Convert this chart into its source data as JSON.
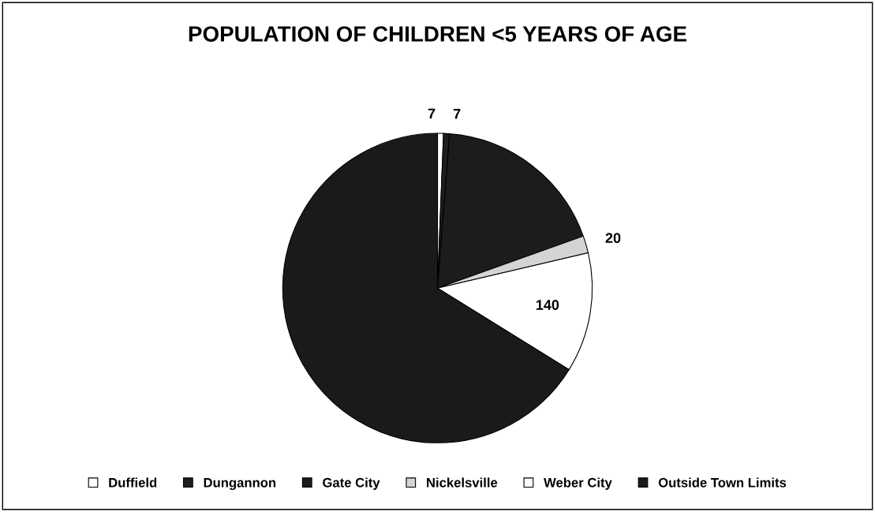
{
  "chart_data": {
    "type": "pie",
    "title": "POPULATION OF CHILDREN <5 YEARS OF AGE",
    "categories": [
      "Duffield",
      "Dungannon",
      "Gate City",
      "Nickelsville",
      "Weber City",
      "Outside Town Limits"
    ],
    "values": [
      7,
      7,
      205,
      20,
      140,
      741
    ],
    "colors": [
      "#ffffff",
      "#1e1e1e",
      "#1c1c1c",
      "#d4d4d4",
      "#ffffff",
      "#1a1a1a"
    ],
    "value_labels": [
      "7",
      "7",
      null,
      "20",
      "140",
      null
    ],
    "legend": "bottom"
  }
}
